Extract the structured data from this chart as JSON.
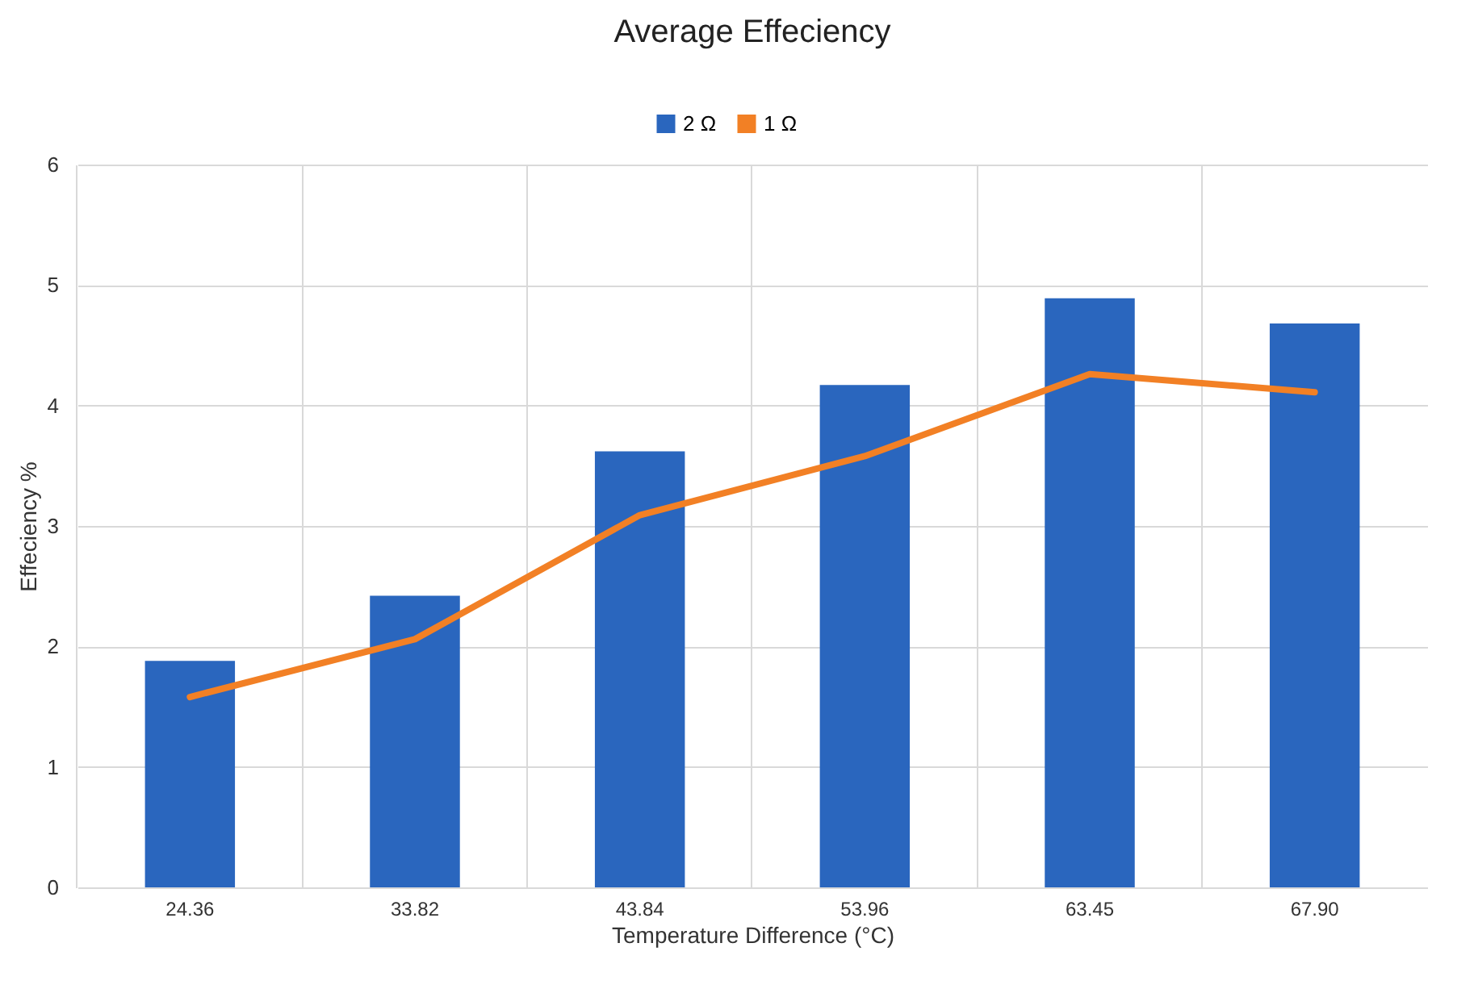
{
  "chart_data": {
    "type": "bar",
    "title": "Average Effeciency",
    "xlabel": "Temperature Difference (°C)",
    "ylabel": "Effeciency %",
    "categories": [
      "24.36",
      "33.82",
      "43.84",
      "53.96",
      "63.45",
      "67.90"
    ],
    "series": [
      {
        "name": "2 Ω",
        "color": "#2a66be",
        "values": [
          1.88,
          2.42,
          3.62,
          4.17,
          4.89,
          4.68
        ]
      },
      {
        "name": "1 Ω",
        "type": "line",
        "color": "#f28025",
        "values": [
          1.58,
          2.06,
          3.09,
          3.58,
          4.26,
          4.11
        ]
      }
    ],
    "ylim": [
      0,
      6
    ],
    "yticks": [
      0,
      1,
      2,
      3,
      4,
      5,
      6
    ],
    "grid": true,
    "legend": "top",
    "marker": "none",
    "line_style": "solid"
  }
}
